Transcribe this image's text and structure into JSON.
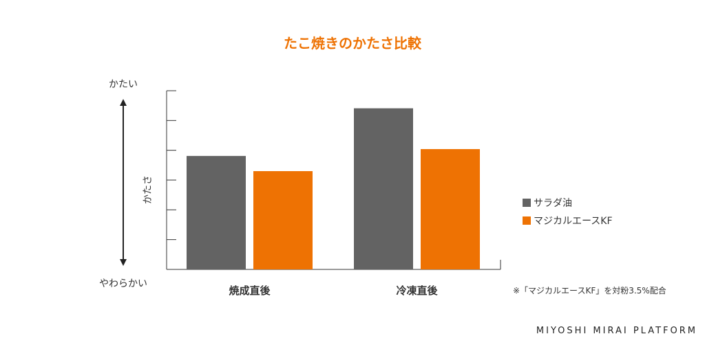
{
  "chart_data": {
    "type": "bar",
    "title": "たこ焼きのかたさ比較",
    "ylabel": "かたさ",
    "y_top_label": "かたい",
    "y_bottom_label": "やわらかい",
    "categories": [
      "焼成直後",
      "冷凍直後"
    ],
    "ylim": [
      0,
      6
    ],
    "y_ticks": [
      1,
      2,
      3,
      4,
      5,
      6
    ],
    "grid": false,
    "legend_position": "right",
    "series": [
      {
        "name": "サラダ油",
        "color": "#636363",
        "values": [
          3.81,
          5.41
        ]
      },
      {
        "name": "マジカルエースKF",
        "color": "#ee7203",
        "values": [
          3.3,
          4.04
        ]
      }
    ]
  },
  "colors": {
    "title": "#ee7203",
    "axis": "#333333"
  },
  "note": "※「マジカルエースKF」を対粉3.5%配合",
  "brand": "MIYOSHI MIRAI PLATFORM"
}
